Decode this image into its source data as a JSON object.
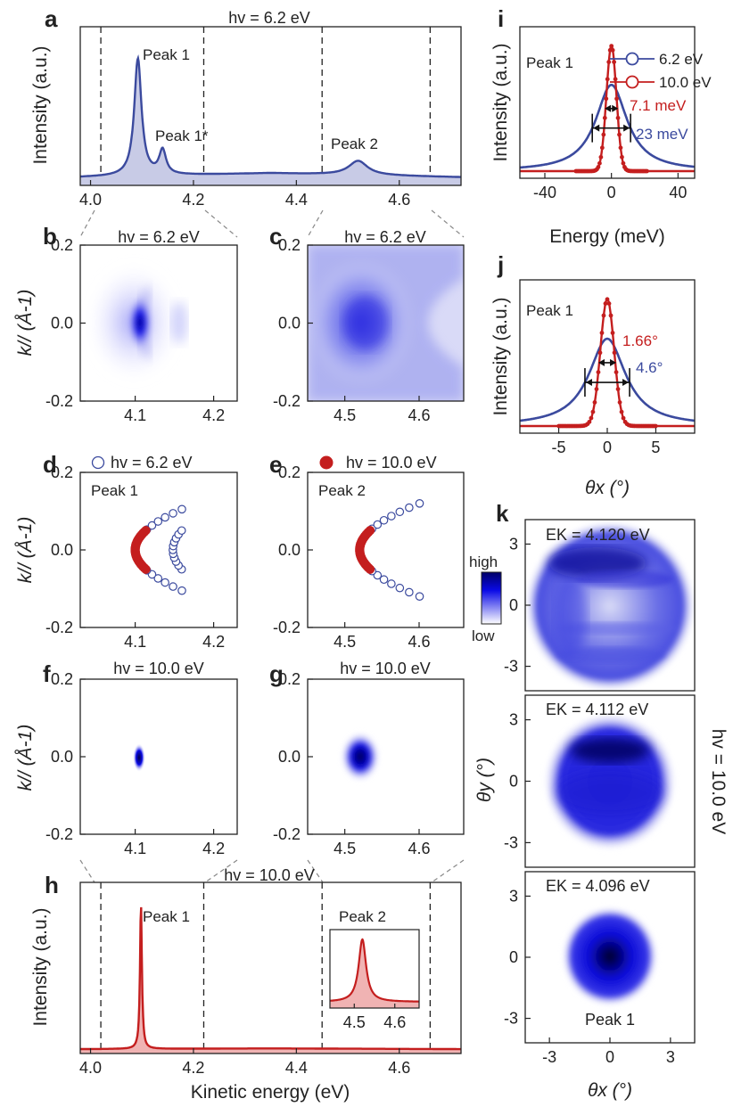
{
  "colors": {
    "blue": "#3b4a9e",
    "blue_fill": "#c8cbe6",
    "red": "#c41e1e",
    "red_fill": "#f0b3b3",
    "map_blue": "#0a0ae6",
    "axis": "#222222"
  },
  "panel_letters": {
    "a": "a",
    "b": "b",
    "c": "c",
    "d": "d",
    "e": "e",
    "f": "f",
    "g": "g",
    "h": "h",
    "i": "i",
    "j": "j",
    "k": "k"
  },
  "labels": {
    "hv_62": "hv = 6.2 eV",
    "hv_100": "hv = 10.0 eV",
    "intensity": "Intensity (a.u.)",
    "kpar": "k// (Å-1)",
    "kinetic_energy": "Kinetic energy (eV)",
    "energy_mev": "Energy (meV)",
    "theta_x": "θx (°)",
    "theta_y": "θy (°)",
    "peak1": "Peak 1",
    "peak1star": "Peak 1*",
    "peak2": "Peak 2",
    "legend_62": "6.2 eV",
    "legend_100": "10.0 eV",
    "fwhm_e_red": "7.1 meV",
    "fwhm_e_blue": "23 meV",
    "fwhm_t_red": "1.66°",
    "fwhm_t_blue": "4.6°",
    "ek1": "EK = 4.120 eV",
    "ek2": "EK = 4.112 eV",
    "ek3": "EK = 4.096 eV",
    "cbar_high": "high",
    "cbar_low": "low"
  },
  "chart_data": [
    {
      "id": "a",
      "type": "area",
      "title": "hv = 6.2 eV",
      "xlabel": "",
      "ylabel": "Intensity (a.u.)",
      "xlim": [
        3.98,
        4.72
      ],
      "xticks": [
        4.0,
        4.2,
        4.4,
        4.6
      ],
      "dashed_lines": [
        4.02,
        4.22,
        4.45,
        4.66
      ],
      "series": [
        {
          "name": "6.2 eV",
          "peaks": [
            {
              "center": 4.092,
              "height": 0.82,
              "width": 0.0085
            },
            {
              "center": 4.14,
              "height": 0.17,
              "width": 0.008
            },
            {
              "center": 4.52,
              "height": 0.1,
              "width": 0.022
            }
          ],
          "background": 0.06
        }
      ],
      "annotations": [
        "Peak 1",
        "Peak 1*",
        "Peak 2"
      ]
    },
    {
      "id": "b",
      "type": "heatmap",
      "title": "hv = 6.2 eV",
      "xlim": [
        4.03,
        4.23
      ],
      "ylim": [
        -0.2,
        0.2
      ],
      "xticks": [
        4.1,
        4.2
      ],
      "yticks": [
        0.2,
        0.0,
        -0.2
      ],
      "ylabel": "k// (Å-1)"
    },
    {
      "id": "c",
      "type": "heatmap",
      "title": "hv = 6.2 eV",
      "xlim": [
        4.45,
        4.66
      ],
      "ylim": [
        -0.2,
        0.2
      ],
      "xticks": [
        4.5,
        4.6
      ],
      "yticks": [
        0.2,
        0.0,
        -0.2
      ]
    },
    {
      "id": "d",
      "type": "scatter",
      "title": "",
      "xlim": [
        4.03,
        4.23
      ],
      "ylim": [
        -0.2,
        0.2
      ],
      "xticks": [
        4.1,
        4.2
      ],
      "yticks": [
        0.2,
        0.0,
        -0.2
      ],
      "ylabel": "k// (Å-1)",
      "legend": "hv = 6.2 eV",
      "series": [
        {
          "name": "hv = 6.2 eV",
          "marker": "open-circle",
          "curves": [
            {
              "vertex_x": 4.1,
              "kmax": 0.105,
              "a": 5.4
            },
            {
              "vertex_x": 4.148,
              "kmax": 0.05,
              "a": 4.5
            }
          ]
        },
        {
          "name": "hv = 10.0 eV",
          "marker": "filled-circle",
          "curves": [
            {
              "vertex_x": 4.1,
              "kmax": 0.05,
              "a": 5.4
            }
          ]
        }
      ]
    },
    {
      "id": "e",
      "type": "scatter",
      "title": "",
      "xlim": [
        4.45,
        4.66
      ],
      "ylim": [
        -0.2,
        0.2
      ],
      "xticks": [
        4.5,
        4.6
      ],
      "yticks": [
        0.2,
        0.0,
        -0.2
      ],
      "legend": "hv = 10.0 eV",
      "series": [
        {
          "name": "hv = 6.2 eV",
          "marker": "open-circle",
          "curves": [
            {
              "vertex_x": 4.52,
              "kmax": 0.12,
              "a": 5.6
            }
          ]
        },
        {
          "name": "hv = 10.0 eV",
          "marker": "filled-circle",
          "curves": [
            {
              "vertex_x": 4.52,
              "kmax": 0.05,
              "a": 5.6
            }
          ]
        }
      ]
    },
    {
      "id": "f",
      "type": "heatmap",
      "title": "hv = 10.0 eV",
      "xlim": [
        4.03,
        4.23
      ],
      "ylim": [
        -0.2,
        0.2
      ],
      "xticks": [
        4.1,
        4.2
      ],
      "yticks": [
        0.2,
        0.0,
        -0.2
      ],
      "ylabel": "k// (Å-1)"
    },
    {
      "id": "g",
      "type": "heatmap",
      "title": "hv = 10.0 eV",
      "xlim": [
        4.45,
        4.66
      ],
      "ylim": [
        -0.2,
        0.2
      ],
      "xticks": [
        4.5,
        4.6
      ],
      "yticks": [
        0.2,
        0.0,
        -0.2
      ]
    },
    {
      "id": "h",
      "type": "area",
      "title": "hv = 10.0 eV",
      "xlabel": "Kinetic energy (eV)",
      "ylabel": "Intensity (a.u.)",
      "xlim": [
        3.98,
        4.72
      ],
      "xticks": [
        4.0,
        4.2,
        4.4,
        4.6
      ],
      "dashed_lines": [
        4.02,
        4.22,
        4.45,
        4.66
      ],
      "series": [
        {
          "name": "10.0 eV",
          "peaks": [
            {
              "center": 4.098,
              "height": 0.95,
              "width": 0.0022
            }
          ],
          "background": 0.01
        }
      ],
      "inset": {
        "xlim": [
          4.44,
          4.66
        ],
        "xticks": [
          4.5,
          4.6
        ],
        "peak_center": 4.52,
        "peak_width": 0.011,
        "label": "Peak 2"
      }
    },
    {
      "id": "i",
      "type": "line",
      "xlabel": "Energy (meV)",
      "ylabel": "Intensity (a.u.)",
      "xlim": [
        -55,
        50
      ],
      "xticks": [
        -40,
        0,
        40
      ],
      "series": [
        {
          "name": "6.2 eV",
          "fwhm": 23,
          "height": 0.62
        },
        {
          "name": "10.0 eV",
          "fwhm": 7.1,
          "height": 0.9
        }
      ]
    },
    {
      "id": "j",
      "type": "line",
      "xlabel": "θx (°)",
      "ylabel": "Intensity (a.u.)",
      "xlim": [
        -9,
        9
      ],
      "xticks": [
        -5,
        0,
        5
      ],
      "series": [
        {
          "name": "6.2 eV",
          "fwhm": 4.6,
          "height": 0.62
        },
        {
          "name": "10.0 eV",
          "fwhm": 1.66,
          "height": 0.9
        }
      ]
    },
    {
      "id": "k",
      "type": "heatmap",
      "xlabel": "θx (°)",
      "ylabel": "θy (°)",
      "xlim": [
        -4.2,
        4.2
      ],
      "ylim": [
        -4.2,
        4.2
      ],
      "xticks": [
        -3,
        0,
        3
      ],
      "yticks": [
        3,
        0,
        -3
      ],
      "side_label": "hv = 10.0 eV",
      "maps": [
        "EK = 4.120 eV",
        "EK = 4.112 eV",
        "EK = 4.096 eV"
      ]
    }
  ]
}
